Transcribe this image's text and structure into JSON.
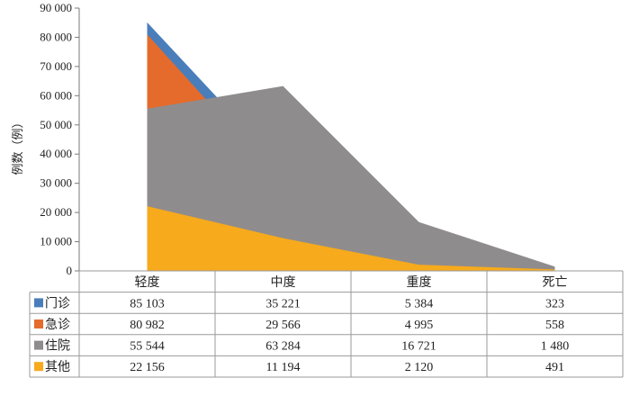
{
  "chart_data": {
    "type": "area",
    "ylabel": "例数（例）",
    "categories": [
      "轻度",
      "中度",
      "重度",
      "死亡"
    ],
    "ylim": [
      0,
      90000
    ],
    "yticks": [
      0,
      10000,
      20000,
      30000,
      40000,
      50000,
      60000,
      70000,
      80000,
      90000
    ],
    "ytick_labels": [
      "0",
      "10 000",
      "20 000",
      "30 000",
      "40 000",
      "50 000",
      "60 000",
      "70 000",
      "80 000",
      "90 000"
    ],
    "grid": false,
    "legend": "data-table",
    "series": [
      {
        "name": "门诊",
        "color": "#4a7ebb",
        "values": [
          85103,
          35221,
          5384,
          323
        ],
        "labels": [
          "85 103",
          "35 221",
          "5 384",
          "323"
        ]
      },
      {
        "name": "急诊",
        "color": "#e46b2c",
        "values": [
          80982,
          29566,
          4995,
          558
        ],
        "labels": [
          "80 982",
          "29 566",
          "4 995",
          "558"
        ]
      },
      {
        "name": "住院",
        "color": "#8f8c8d",
        "values": [
          55544,
          63284,
          16721,
          1480
        ],
        "labels": [
          "55 544",
          "63 284",
          "16 721",
          "1 480"
        ]
      },
      {
        "name": "其他",
        "color": "#f6aa1c",
        "values": [
          22156,
          11194,
          2120,
          491
        ],
        "labels": [
          "22 156",
          "11 194",
          "2 120",
          "491"
        ]
      }
    ]
  }
}
